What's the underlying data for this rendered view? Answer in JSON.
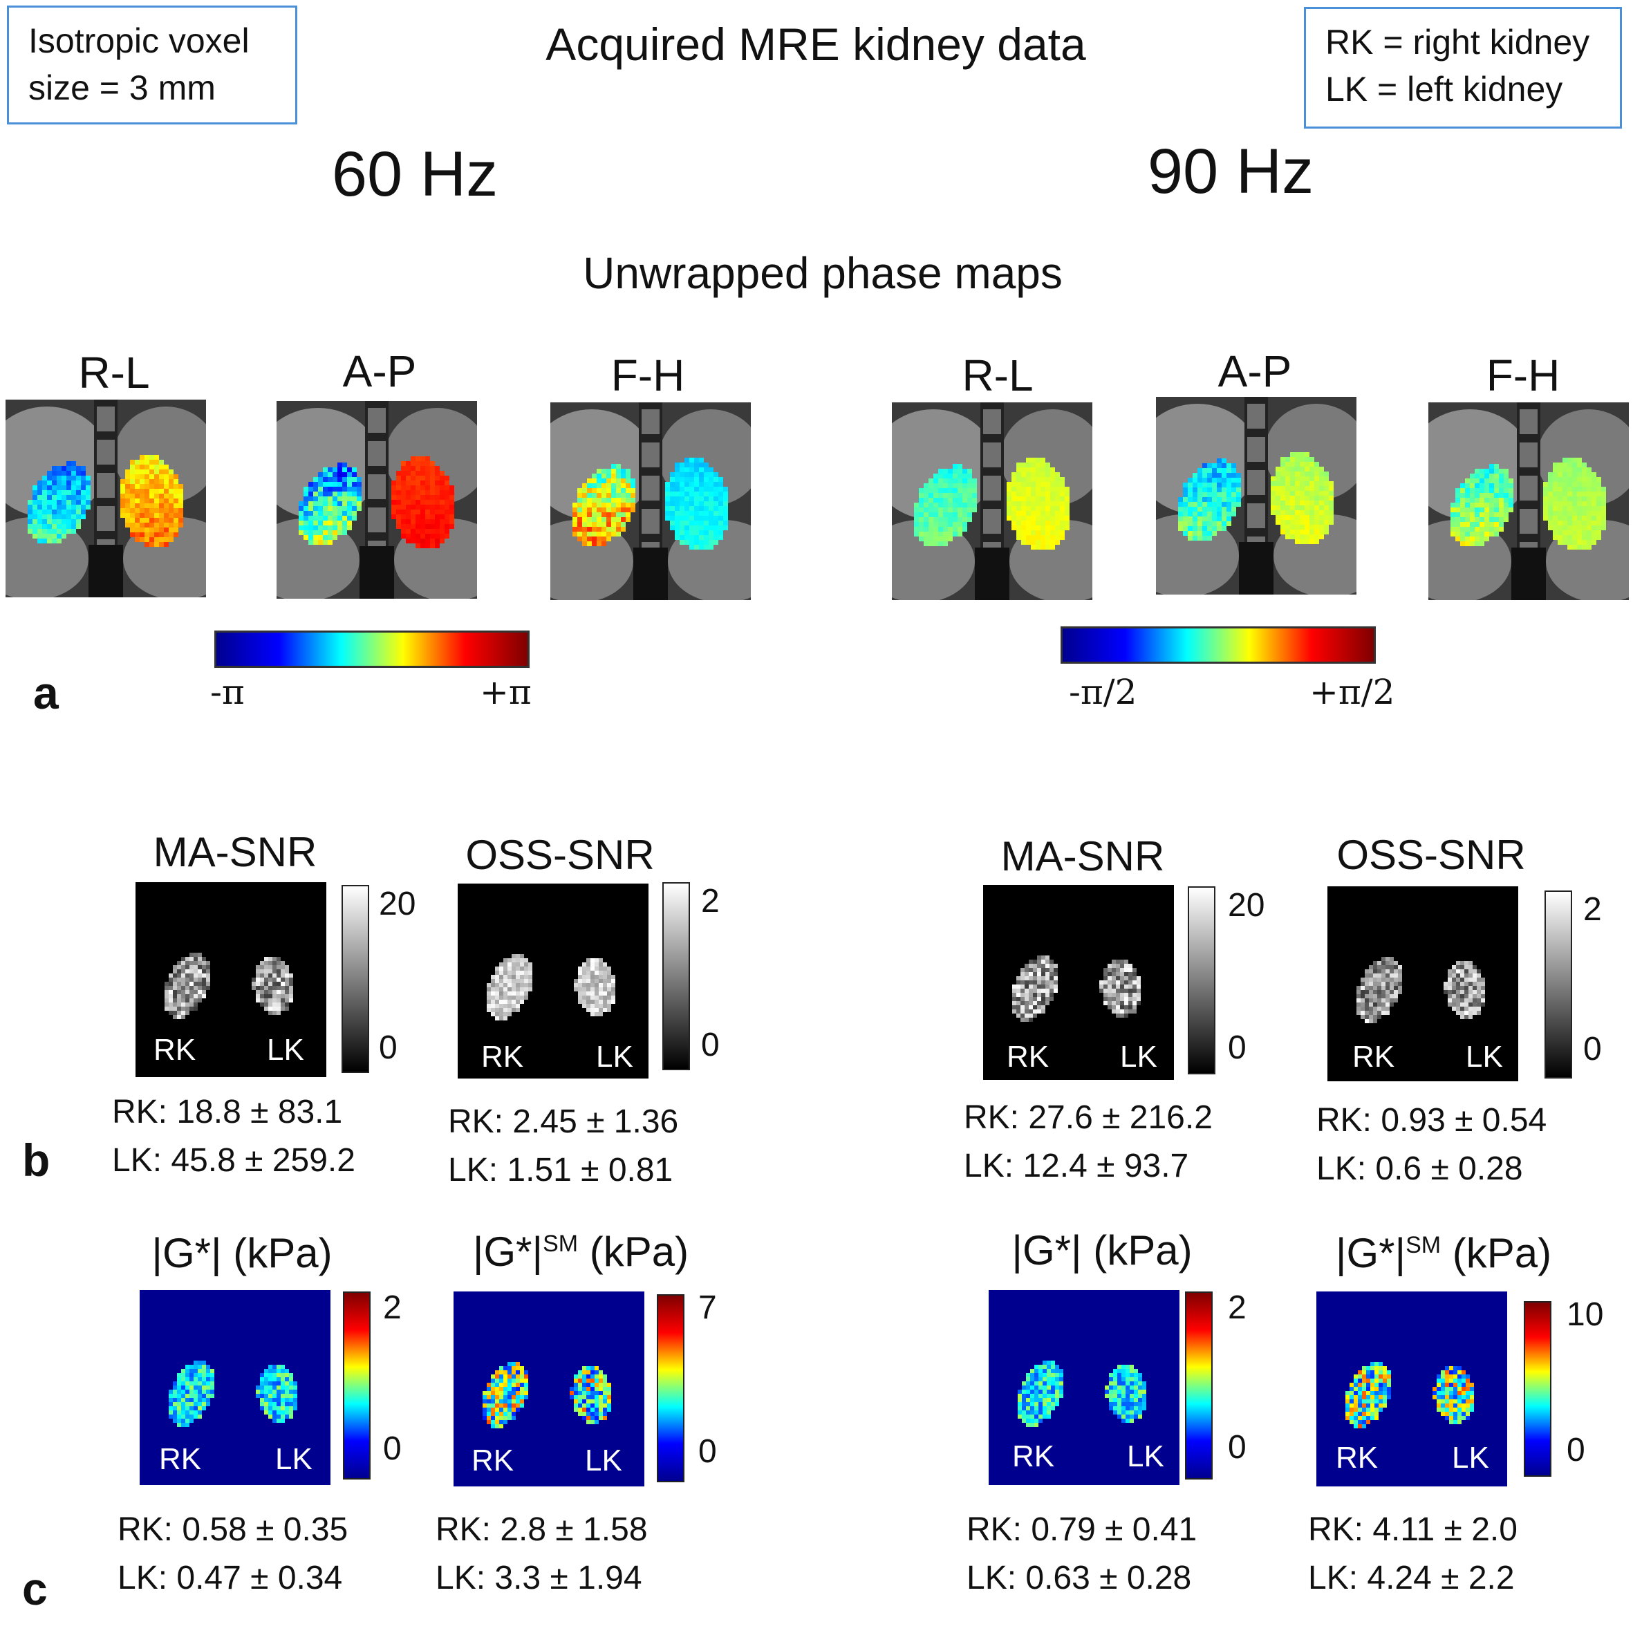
{
  "header": {
    "title": "Acquired MRE kidney data",
    "voxel_box": [
      "Isotropic voxel",
      "size = 3 mm"
    ],
    "legend_box": [
      "RK = right kidney",
      "LK = left kidney"
    ]
  },
  "frequencies": [
    "60 Hz",
    "90 Hz"
  ],
  "panel_a": {
    "letter": "a",
    "subtitle": "Unwrapped phase maps",
    "directions": [
      "R-L",
      "A-P",
      "F-H"
    ],
    "colorbar_60": {
      "min": "-π",
      "max": "+π"
    },
    "colorbar_90": {
      "min": "-π/2",
      "max": "+π/2"
    }
  },
  "panel_b": {
    "letter": "b",
    "maps": [
      {
        "title": "MA-SNR",
        "cmax": "20",
        "cmin": "0",
        "rk": "RK: 18.8 ± 83.1",
        "lk": "LK: 45.8 ± 259.2"
      },
      {
        "title": "OSS-SNR",
        "cmax": "2",
        "cmin": "0",
        "rk": "RK: 2.45 ± 1.36",
        "lk": "LK: 1.51 ± 0.81"
      },
      {
        "title": "MA-SNR",
        "cmax": "20",
        "cmin": "0",
        "rk": "RK: 27.6 ± 216.2",
        "lk": "LK: 12.4 ± 93.7"
      },
      {
        "title": "OSS-SNR",
        "cmax": "2",
        "cmin": "0",
        "rk": "RK: 0.93 ± 0.54",
        "lk": "LK: 0.6 ± 0.28"
      }
    ]
  },
  "panel_c": {
    "letter": "c",
    "maps": [
      {
        "title": "|G*| (kPa)",
        "title_sup": "",
        "title_tail": "",
        "cmax": "2",
        "cmin": "0",
        "rk": "RK: 0.58 ±  0.35",
        "lk": "LK: 0.47 ± 0.34"
      },
      {
        "title": "|G*|",
        "title_sup": "SM",
        "title_tail": " (kPa)",
        "cmax": "7",
        "cmin": "0",
        "rk": "RK: 2.8 ± 1.58",
        "lk": "LK: 3.3 ± 1.94"
      },
      {
        "title": "|G*| (kPa)",
        "title_sup": "",
        "title_tail": "",
        "cmax": "2",
        "cmin": "0",
        "rk": "RK: 0.79 ±  0.41",
        "lk": "LK: 0.63 ± 0.28"
      },
      {
        "title": "|G*|",
        "title_sup": "SM",
        "title_tail": " (kPa)",
        "cmax": "10",
        "cmin": "0",
        "rk": "RK: 4.11 ±  2.0",
        "lk": "LK: 4.24 ± 2.2"
      }
    ]
  },
  "kidney_labels": {
    "right": "RK",
    "left": "LK"
  }
}
